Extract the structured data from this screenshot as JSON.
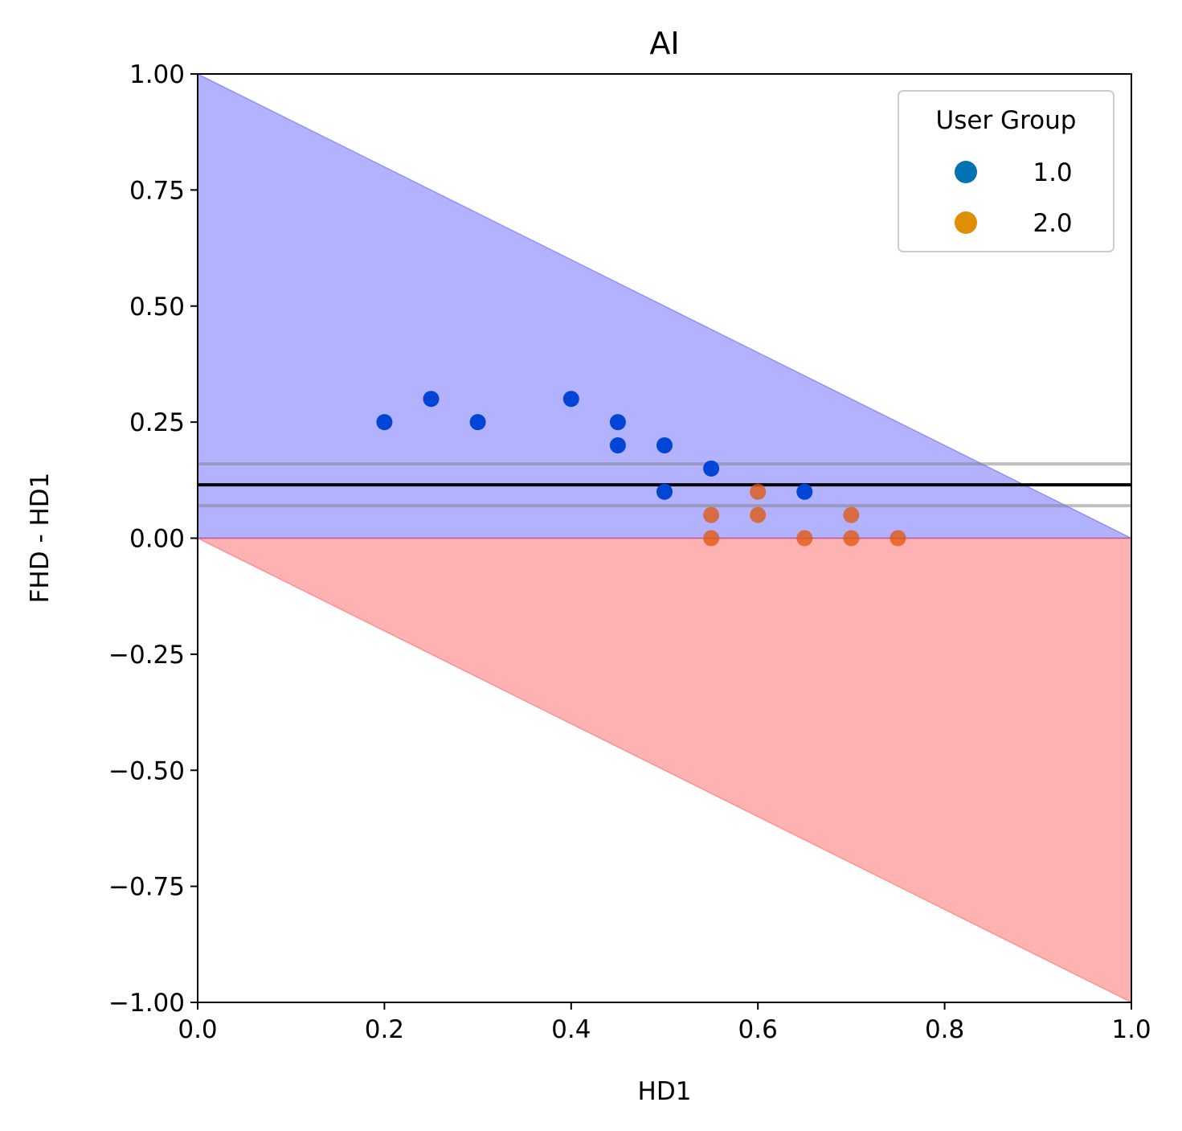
{
  "chart_data": {
    "type": "scatter",
    "title": "AI",
    "xlabel": "HD1",
    "ylabel": "FHD - HD1",
    "xlim": [
      0.0,
      1.0
    ],
    "ylim": [
      -1.0,
      1.0
    ],
    "x_ticks": [
      "0.0",
      "0.2",
      "0.4",
      "0.6",
      "0.8",
      "1.0"
    ],
    "y_ticks": [
      "1.00",
      "0.75",
      "0.50",
      "0.25",
      "0.00",
      "−0.25",
      "−0.50",
      "−0.75",
      "−1.00"
    ],
    "grid": false,
    "legend": {
      "title": "User Group",
      "placement": "top-right",
      "entries": [
        {
          "label": "1.0",
          "color": "#0173b2"
        },
        {
          "label": "2.0",
          "color": "#de8f05"
        }
      ]
    },
    "regions": [
      {
        "name": "upper-triangle",
        "vertices": [
          [
            0,
            0
          ],
          [
            0,
            1
          ],
          [
            1,
            0
          ]
        ],
        "color": "#0000ff",
        "alpha": 0.3
      },
      {
        "name": "lower-triangle",
        "vertices": [
          [
            0,
            0
          ],
          [
            1,
            0
          ],
          [
            1,
            -1
          ]
        ],
        "color": "#ff0000",
        "alpha": 0.3
      }
    ],
    "hlines": [
      {
        "y": 0.115,
        "color": "#000000",
        "role": "mean"
      },
      {
        "y": 0.16,
        "color": "#808080",
        "alpha": 0.5,
        "role": "upper-bound"
      },
      {
        "y": 0.07,
        "color": "#808080",
        "alpha": 0.5,
        "role": "lower-bound"
      }
    ],
    "series": [
      {
        "name": "1.0",
        "color": "#0173b2",
        "points": [
          [
            0.2,
            0.25
          ],
          [
            0.25,
            0.3
          ],
          [
            0.3,
            0.25
          ],
          [
            0.4,
            0.3
          ],
          [
            0.45,
            0.25
          ],
          [
            0.45,
            0.2
          ],
          [
            0.5,
            0.2
          ],
          [
            0.5,
            0.1
          ],
          [
            0.55,
            0.15
          ],
          [
            0.65,
            0.1
          ]
        ]
      },
      {
        "name": "2.0",
        "color": "#de8f05",
        "points": [
          [
            0.55,
            0.05
          ],
          [
            0.55,
            0.0
          ],
          [
            0.6,
            0.1
          ],
          [
            0.6,
            0.05
          ],
          [
            0.65,
            0.0
          ],
          [
            0.7,
            0.05
          ],
          [
            0.7,
            0.0
          ],
          [
            0.75,
            0.0
          ]
        ]
      }
    ]
  }
}
